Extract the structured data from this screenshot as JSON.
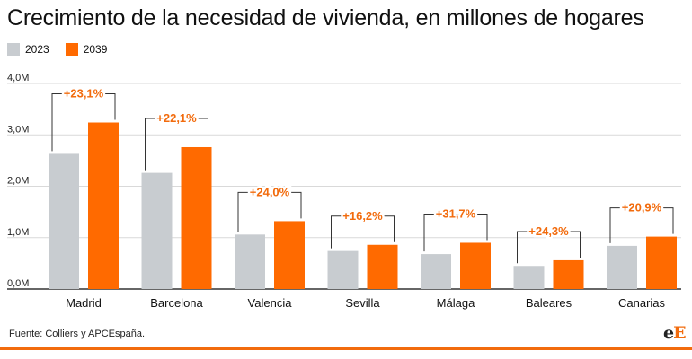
{
  "title": "Crecimiento de la necesidad de vivienda, en millones de hogares",
  "legend": [
    {
      "label": "2023",
      "color": "#c8ccd0"
    },
    {
      "label": "2039",
      "color": "#ff6a00"
    }
  ],
  "source": "Fuente: Colliers y APCEspaña.",
  "logo": {
    "e": "e",
    "E": "E"
  },
  "colors": {
    "accent": "#ff6a00",
    "gray": "#c8ccd0",
    "label": "#f26b0d",
    "axis": "#333333",
    "grid": "#d9d9d9"
  },
  "chart_data": {
    "type": "bar",
    "categories": [
      "Madrid",
      "Barcelona",
      "Valencia",
      "Sevilla",
      "Málaga",
      "Baleares",
      "Canarias"
    ],
    "series": [
      {
        "name": "2023",
        "values": [
          2.63,
          2.26,
          1.06,
          0.74,
          0.68,
          0.45,
          0.84
        ]
      },
      {
        "name": "2039",
        "values": [
          3.24,
          2.76,
          1.32,
          0.86,
          0.9,
          0.56,
          1.02
        ]
      }
    ],
    "annotations": [
      "+23,1%",
      "+22,1%",
      "+24,0%",
      "+16,2%",
      "+31,7%",
      "+24,3%",
      "+20,9%"
    ],
    "yticks": [
      0,
      1,
      2,
      3,
      4
    ],
    "ytick_labels": [
      "0,0M",
      "1,0M",
      "2,0M",
      "3,0M",
      "4,0M"
    ],
    "ylim": [
      0,
      4
    ],
    "grid": true,
    "legend_position": "top-left"
  }
}
